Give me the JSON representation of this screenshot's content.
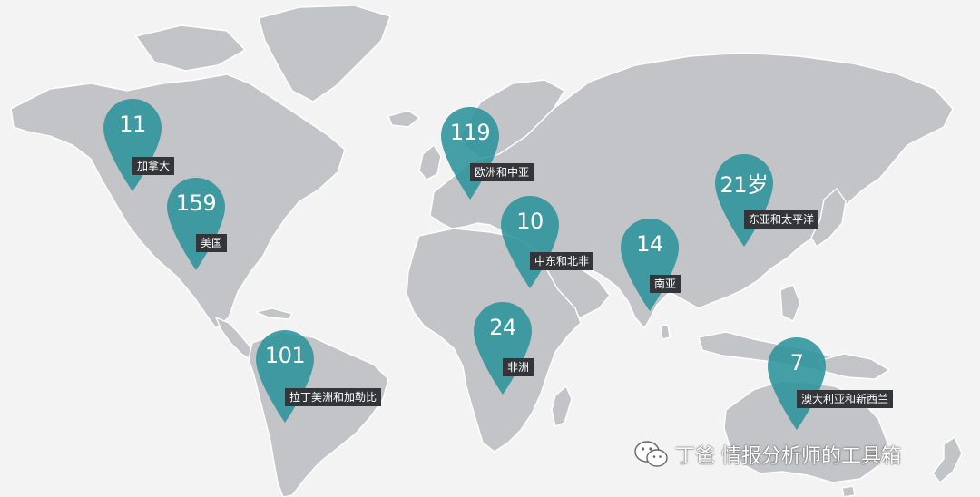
{
  "map": {
    "pins": [
      {
        "id": "canada",
        "value": "11",
        "label": "加拿大"
      },
      {
        "id": "usa",
        "value": "159",
        "label": "美国"
      },
      {
        "id": "latam",
        "value": "101",
        "label": "拉丁美洲和加勒比"
      },
      {
        "id": "europe-central-asia",
        "value": "119",
        "label": "欧洲和中亚"
      },
      {
        "id": "mena",
        "value": "10",
        "label": "中东和北非"
      },
      {
        "id": "africa",
        "value": "24",
        "label": "非洲"
      },
      {
        "id": "south-asia",
        "value": "14",
        "label": "南亚"
      },
      {
        "id": "east-asia-pacific",
        "value": "21岁",
        "label": "东亚和太平洋"
      },
      {
        "id": "aus-nz",
        "value": "7",
        "label": "澳大利亚和新西兰"
      }
    ],
    "colors": {
      "pin": "#2b939b",
      "land": "#c3c4c7",
      "ocean": "#f3f3f4",
      "label_bg": "#333538"
    }
  },
  "watermark": {
    "icon": "wechat-icon",
    "text": "丁爸 情报分析师的工具箱"
  }
}
